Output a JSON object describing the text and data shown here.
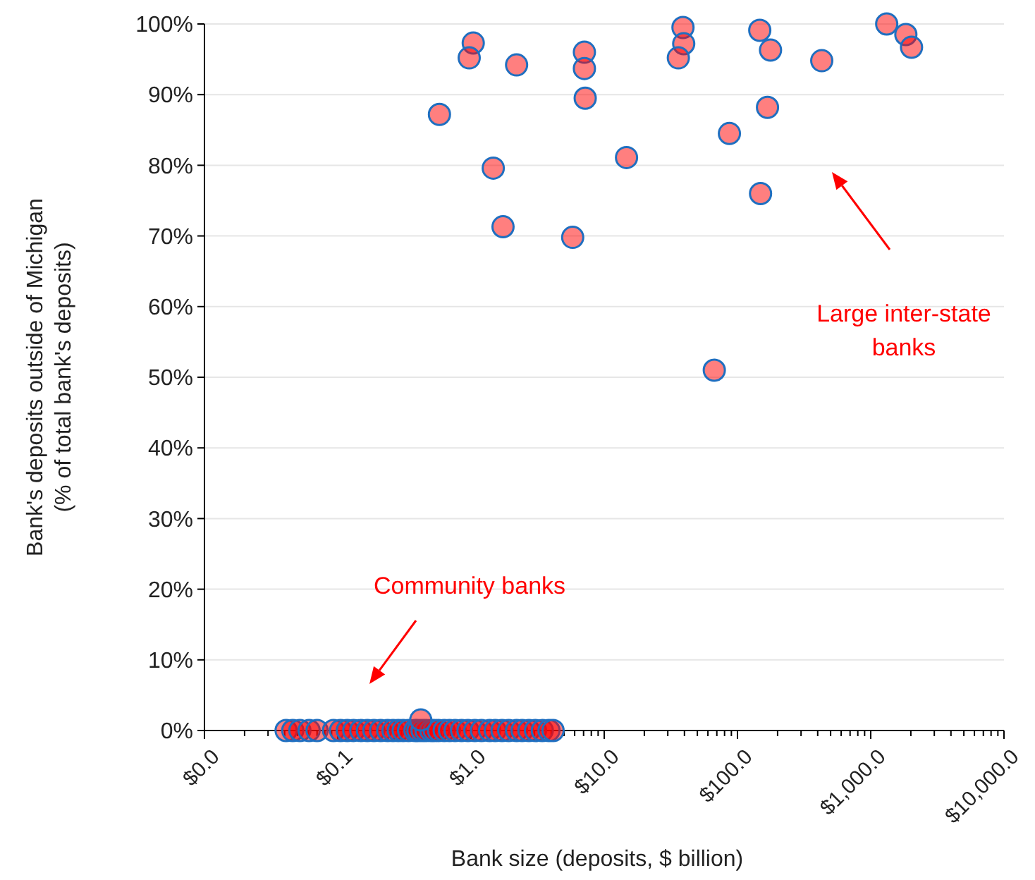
{
  "chart_data": {
    "type": "scatter",
    "xlabel": "Bank size (deposits, $ billion)",
    "ylabel": "Bank's deposits outside of Michigan\n(% of total bank's deposits)",
    "log": "x",
    "grid": "y",
    "marker": "circle",
    "xlim": [
      0.01,
      10000
    ],
    "ylim": [
      0,
      100
    ],
    "xticks": [
      {
        "value": 0.01,
        "label": "$0.0"
      },
      {
        "value": 0.02,
        "label": null
      },
      {
        "value": 0.03,
        "label": null
      },
      {
        "value": 0.04,
        "label": null
      },
      {
        "value": 0.05,
        "label": null
      },
      {
        "value": 0.06,
        "label": null
      },
      {
        "value": 0.07,
        "label": null
      },
      {
        "value": 0.08,
        "label": null
      },
      {
        "value": 0.09,
        "label": null
      },
      {
        "value": 0.1,
        "label": "$0.1"
      },
      {
        "value": 0.2,
        "label": null
      },
      {
        "value": 0.3,
        "label": null
      },
      {
        "value": 0.4,
        "label": null
      },
      {
        "value": 0.5,
        "label": null
      },
      {
        "value": 0.6,
        "label": null
      },
      {
        "value": 0.7,
        "label": null
      },
      {
        "value": 0.8,
        "label": null
      },
      {
        "value": 0.9,
        "label": null
      },
      {
        "value": 1,
        "label": "$1.0"
      },
      {
        "value": 2,
        "label": null
      },
      {
        "value": 3,
        "label": null
      },
      {
        "value": 4,
        "label": null
      },
      {
        "value": 5,
        "label": null
      },
      {
        "value": 6,
        "label": null
      },
      {
        "value": 7,
        "label": null
      },
      {
        "value": 8,
        "label": null
      },
      {
        "value": 9,
        "label": null
      },
      {
        "value": 10,
        "label": "$10.0"
      },
      {
        "value": 20,
        "label": null
      },
      {
        "value": 30,
        "label": null
      },
      {
        "value": 40,
        "label": null
      },
      {
        "value": 50,
        "label": null
      },
      {
        "value": 60,
        "label": null
      },
      {
        "value": 70,
        "label": null
      },
      {
        "value": 80,
        "label": null
      },
      {
        "value": 90,
        "label": null
      },
      {
        "value": 100,
        "label": "$100.0"
      },
      {
        "value": 200,
        "label": null
      },
      {
        "value": 300,
        "label": null
      },
      {
        "value": 400,
        "label": null
      },
      {
        "value": 500,
        "label": null
      },
      {
        "value": 600,
        "label": null
      },
      {
        "value": 700,
        "label": null
      },
      {
        "value": 800,
        "label": null
      },
      {
        "value": 900,
        "label": null
      },
      {
        "value": 1000,
        "label": "$1,000.0"
      },
      {
        "value": 2000,
        "label": null
      },
      {
        "value": 3000,
        "label": null
      },
      {
        "value": 4000,
        "label": null
      },
      {
        "value": 5000,
        "label": null
      },
      {
        "value": 6000,
        "label": null
      },
      {
        "value": 7000,
        "label": null
      },
      {
        "value": 8000,
        "label": null
      },
      {
        "value": 9000,
        "label": null
      },
      {
        "value": 10000,
        "label": "$10,000.0"
      }
    ],
    "yticks": [
      {
        "value": 0,
        "label": "0%"
      },
      {
        "value": 10,
        "label": "10%"
      },
      {
        "value": 20,
        "label": "20%"
      },
      {
        "value": 30,
        "label": "30%"
      },
      {
        "value": 40,
        "label": "40%"
      },
      {
        "value": 50,
        "label": "50%"
      },
      {
        "value": 60,
        "label": "60%"
      },
      {
        "value": 70,
        "label": "70%"
      },
      {
        "value": 80,
        "label": "80%"
      },
      {
        "value": 90,
        "label": "90%"
      },
      {
        "value": 100,
        "label": "100%"
      }
    ],
    "series": [
      {
        "color": "#ff0000",
        "x": [
          0.58,
          1.04,
          0.97,
          2.2,
          1.47,
          1.74,
          7.1,
          7.1,
          7.2,
          5.8,
          14.7,
          39,
          39.5,
          36,
          67,
          147,
          177,
          168,
          87,
          149,
          429,
          1318,
          1835,
          2024,
          0.041,
          0.046,
          0.052,
          0.061,
          0.07,
          0.093,
          0.105,
          0.118,
          0.132,
          0.149,
          0.167,
          0.187,
          0.21,
          0.237,
          0.26,
          0.285,
          0.31,
          0.34,
          0.38,
          0.4,
          0.43,
          0.46,
          0.5,
          0.53,
          0.57,
          0.63,
          0.69,
          0.76,
          0.85,
          0.95,
          1.07,
          1.2,
          1.38,
          1.52,
          1.71,
          1.92,
          2.2,
          2.42,
          2.72,
          3.05,
          3.43,
          3.85,
          4.13,
          0.42
        ],
        "values": [
          87.2,
          97.3,
          95.2,
          94.2,
          79.6,
          71.3,
          96.0,
          93.7,
          89.5,
          69.8,
          81.1,
          99.5,
          97.2,
          95.2,
          51.0,
          99.1,
          96.3,
          88.2,
          84.5,
          76.0,
          94.8,
          100,
          98.5,
          96.7,
          0,
          0,
          0,
          0,
          0,
          0,
          0,
          0,
          0,
          0,
          0,
          0,
          0,
          0,
          0,
          0,
          0,
          0,
          0,
          0,
          0,
          0,
          0,
          0,
          0,
          0,
          0,
          0,
          0,
          0,
          0,
          0,
          0,
          0,
          0,
          0,
          0,
          0,
          0,
          0,
          0,
          0,
          0,
          1.5
        ]
      }
    ],
    "annotations": [
      "Community banks",
      "Large inter-state\nbanks"
    ]
  }
}
